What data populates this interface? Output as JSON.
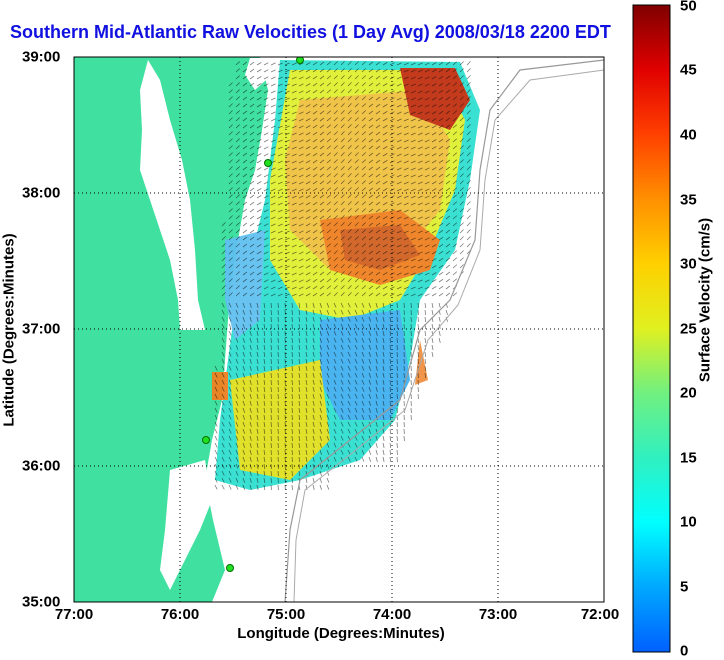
{
  "title": "Southern Mid-Atlantic Raw Velocities (1 Day Avg) 2008/03/18 2200 EDT",
  "axes": {
    "xlabel": "Longitude (Degrees:Minutes)",
    "ylabel": "Latitude (Degrees:Minutes)",
    "xticks": [
      "77:00",
      "76:00",
      "75:00",
      "74:00",
      "73:00",
      "72:00"
    ],
    "yticks": [
      "39:00",
      "38:00",
      "37:00",
      "36:00",
      "35:00"
    ]
  },
  "colorbar": {
    "label": "Surface Velocity (cm/s)",
    "ticks": [
      "50",
      "45",
      "40",
      "35",
      "30",
      "25",
      "20",
      "15",
      "10",
      "5",
      "0"
    ],
    "range": [
      0,
      50
    ],
    "colors": [
      "#0060ff",
      "#00b0ff",
      "#00ffff",
      "#30f0c0",
      "#60f080",
      "#c0f040",
      "#ffff00",
      "#ffc000",
      "#ff8000",
      "#ff2000",
      "#c00000",
      "#800000"
    ]
  },
  "map": {
    "land_color": "#40e0a0",
    "grid": "dotted"
  }
}
